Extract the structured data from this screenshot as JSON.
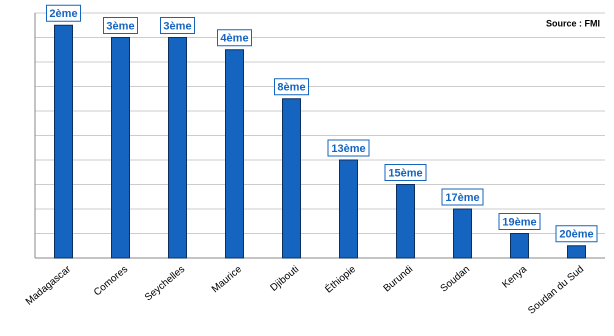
{
  "chart_data": {
    "type": "bar",
    "source": "Source : FMI",
    "categories": [
      "Madagascar",
      "Comores",
      "Seychelles",
      "Maurice",
      "Djibouti",
      "Éthiopie",
      "Burundi",
      "Soudan",
      "Kenya",
      "Soudan du Sud"
    ],
    "values": [
      9.5,
      9,
      9,
      8.5,
      6.5,
      4,
      3,
      2,
      1,
      0.5
    ],
    "rank_labels": [
      "2ème",
      "3ème",
      "3ème",
      "4ème",
      "8ème",
      "13ème",
      "15ème",
      "17ème",
      "19ème",
      "20ème"
    ],
    "color": "#1565c0",
    "ylim": [
      0,
      10
    ],
    "yticks": [
      0,
      1,
      2,
      3,
      4,
      5,
      6,
      7,
      8,
      9,
      10
    ],
    "grid": true
  }
}
